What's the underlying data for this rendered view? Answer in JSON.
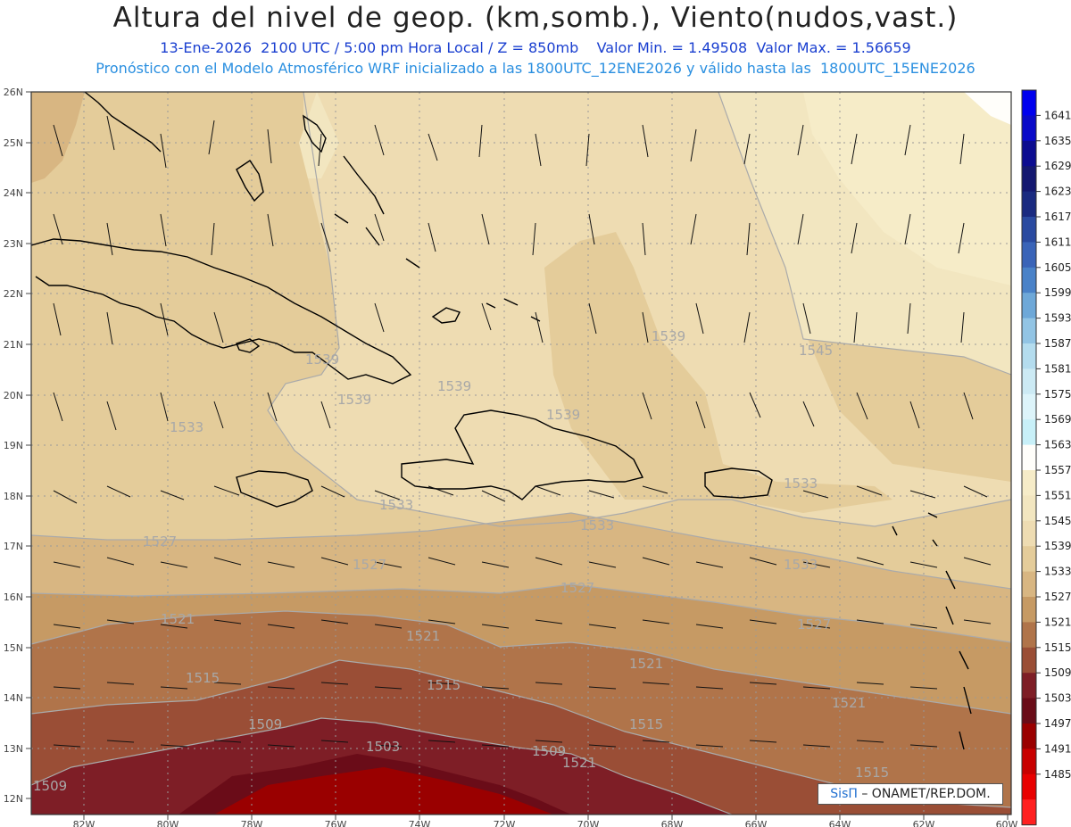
{
  "header": {
    "title": "Altura del nivel de geop. (km,somb.), Viento(nudos,vast.)",
    "subtitle": "13-Ene-2026  2100 UTC / 5:00 pm Hora Local / Z = 850mb    Valor Min. = 1.49508  Valor Max. = 1.56659",
    "model_line": "Pronóstico con el Modelo Atmosférico WRF inicializado a las 1800UTC_12ENE2026 y válido hasta las  1800UTC_15ENE2026"
  },
  "map": {
    "lat_labels": [
      "26N",
      "25N",
      "24N",
      "23N",
      "22N",
      "21N",
      "20N",
      "19N",
      "18N",
      "17N",
      "16N",
      "15N",
      "14N",
      "13N",
      "12N"
    ],
    "lon_labels": [
      "82W",
      "80W",
      "78W",
      "76W",
      "74W",
      "72W",
      "70W",
      "68W",
      "66W",
      "64W",
      "62W",
      "60W"
    ],
    "contour_labels": [
      {
        "text": "1539"
      },
      {
        "text": "1539"
      },
      {
        "text": "1539"
      },
      {
        "text": "1539"
      },
      {
        "text": "1539"
      },
      {
        "text": "1545"
      },
      {
        "text": "1533"
      },
      {
        "text": "1533"
      },
      {
        "text": "1533"
      },
      {
        "text": "1533"
      },
      {
        "text": "1533"
      },
      {
        "text": "1527"
      },
      {
        "text": "1527"
      },
      {
        "text": "1527"
      },
      {
        "text": "1527"
      },
      {
        "text": "1521"
      },
      {
        "text": "1521"
      },
      {
        "text": "1521"
      },
      {
        "text": "1521"
      },
      {
        "text": "1521"
      },
      {
        "text": "1515"
      },
      {
        "text": "1515"
      },
      {
        "text": "1515"
      },
      {
        "text": "1515"
      },
      {
        "text": "1509"
      },
      {
        "text": "1509"
      },
      {
        "text": "1509"
      },
      {
        "text": "1503"
      }
    ]
  },
  "colorbar": {
    "labels": [
      "1641",
      "1635",
      "1629",
      "1623",
      "1617",
      "1611",
      "1605",
      "1599",
      "1593",
      "1587",
      "1581",
      "1575",
      "1569",
      "1563",
      "1557",
      "1551",
      "1545",
      "1539",
      "1533",
      "1527",
      "1521",
      "1515",
      "1509",
      "1503",
      "1497",
      "1491",
      "1485"
    ],
    "colors": [
      "#0000ee",
      "#0a0ac8",
      "#0c0c90",
      "#141870",
      "#1a2a80",
      "#2a4aa0",
      "#3a64b8",
      "#4a82c8",
      "#6ea8d8",
      "#92c4e4",
      "#b4dcee",
      "#cceaf4",
      "#ddf4fa",
      "#c8f0f8",
      "#fffefa",
      "#f6ecc8",
      "#f2e6c0",
      "#eedcb2",
      "#e4cc9a",
      "#d8b682",
      "#c69a64",
      "#b0744a",
      "#9a4e36",
      "#7e1e26",
      "#6a0c18",
      "#9a0000",
      "#c80000",
      "#e80000",
      "#ff2020"
    ]
  },
  "credit": {
    "logo": "SisΠ",
    "text": " –  ONAMET/REP.DOM."
  }
}
